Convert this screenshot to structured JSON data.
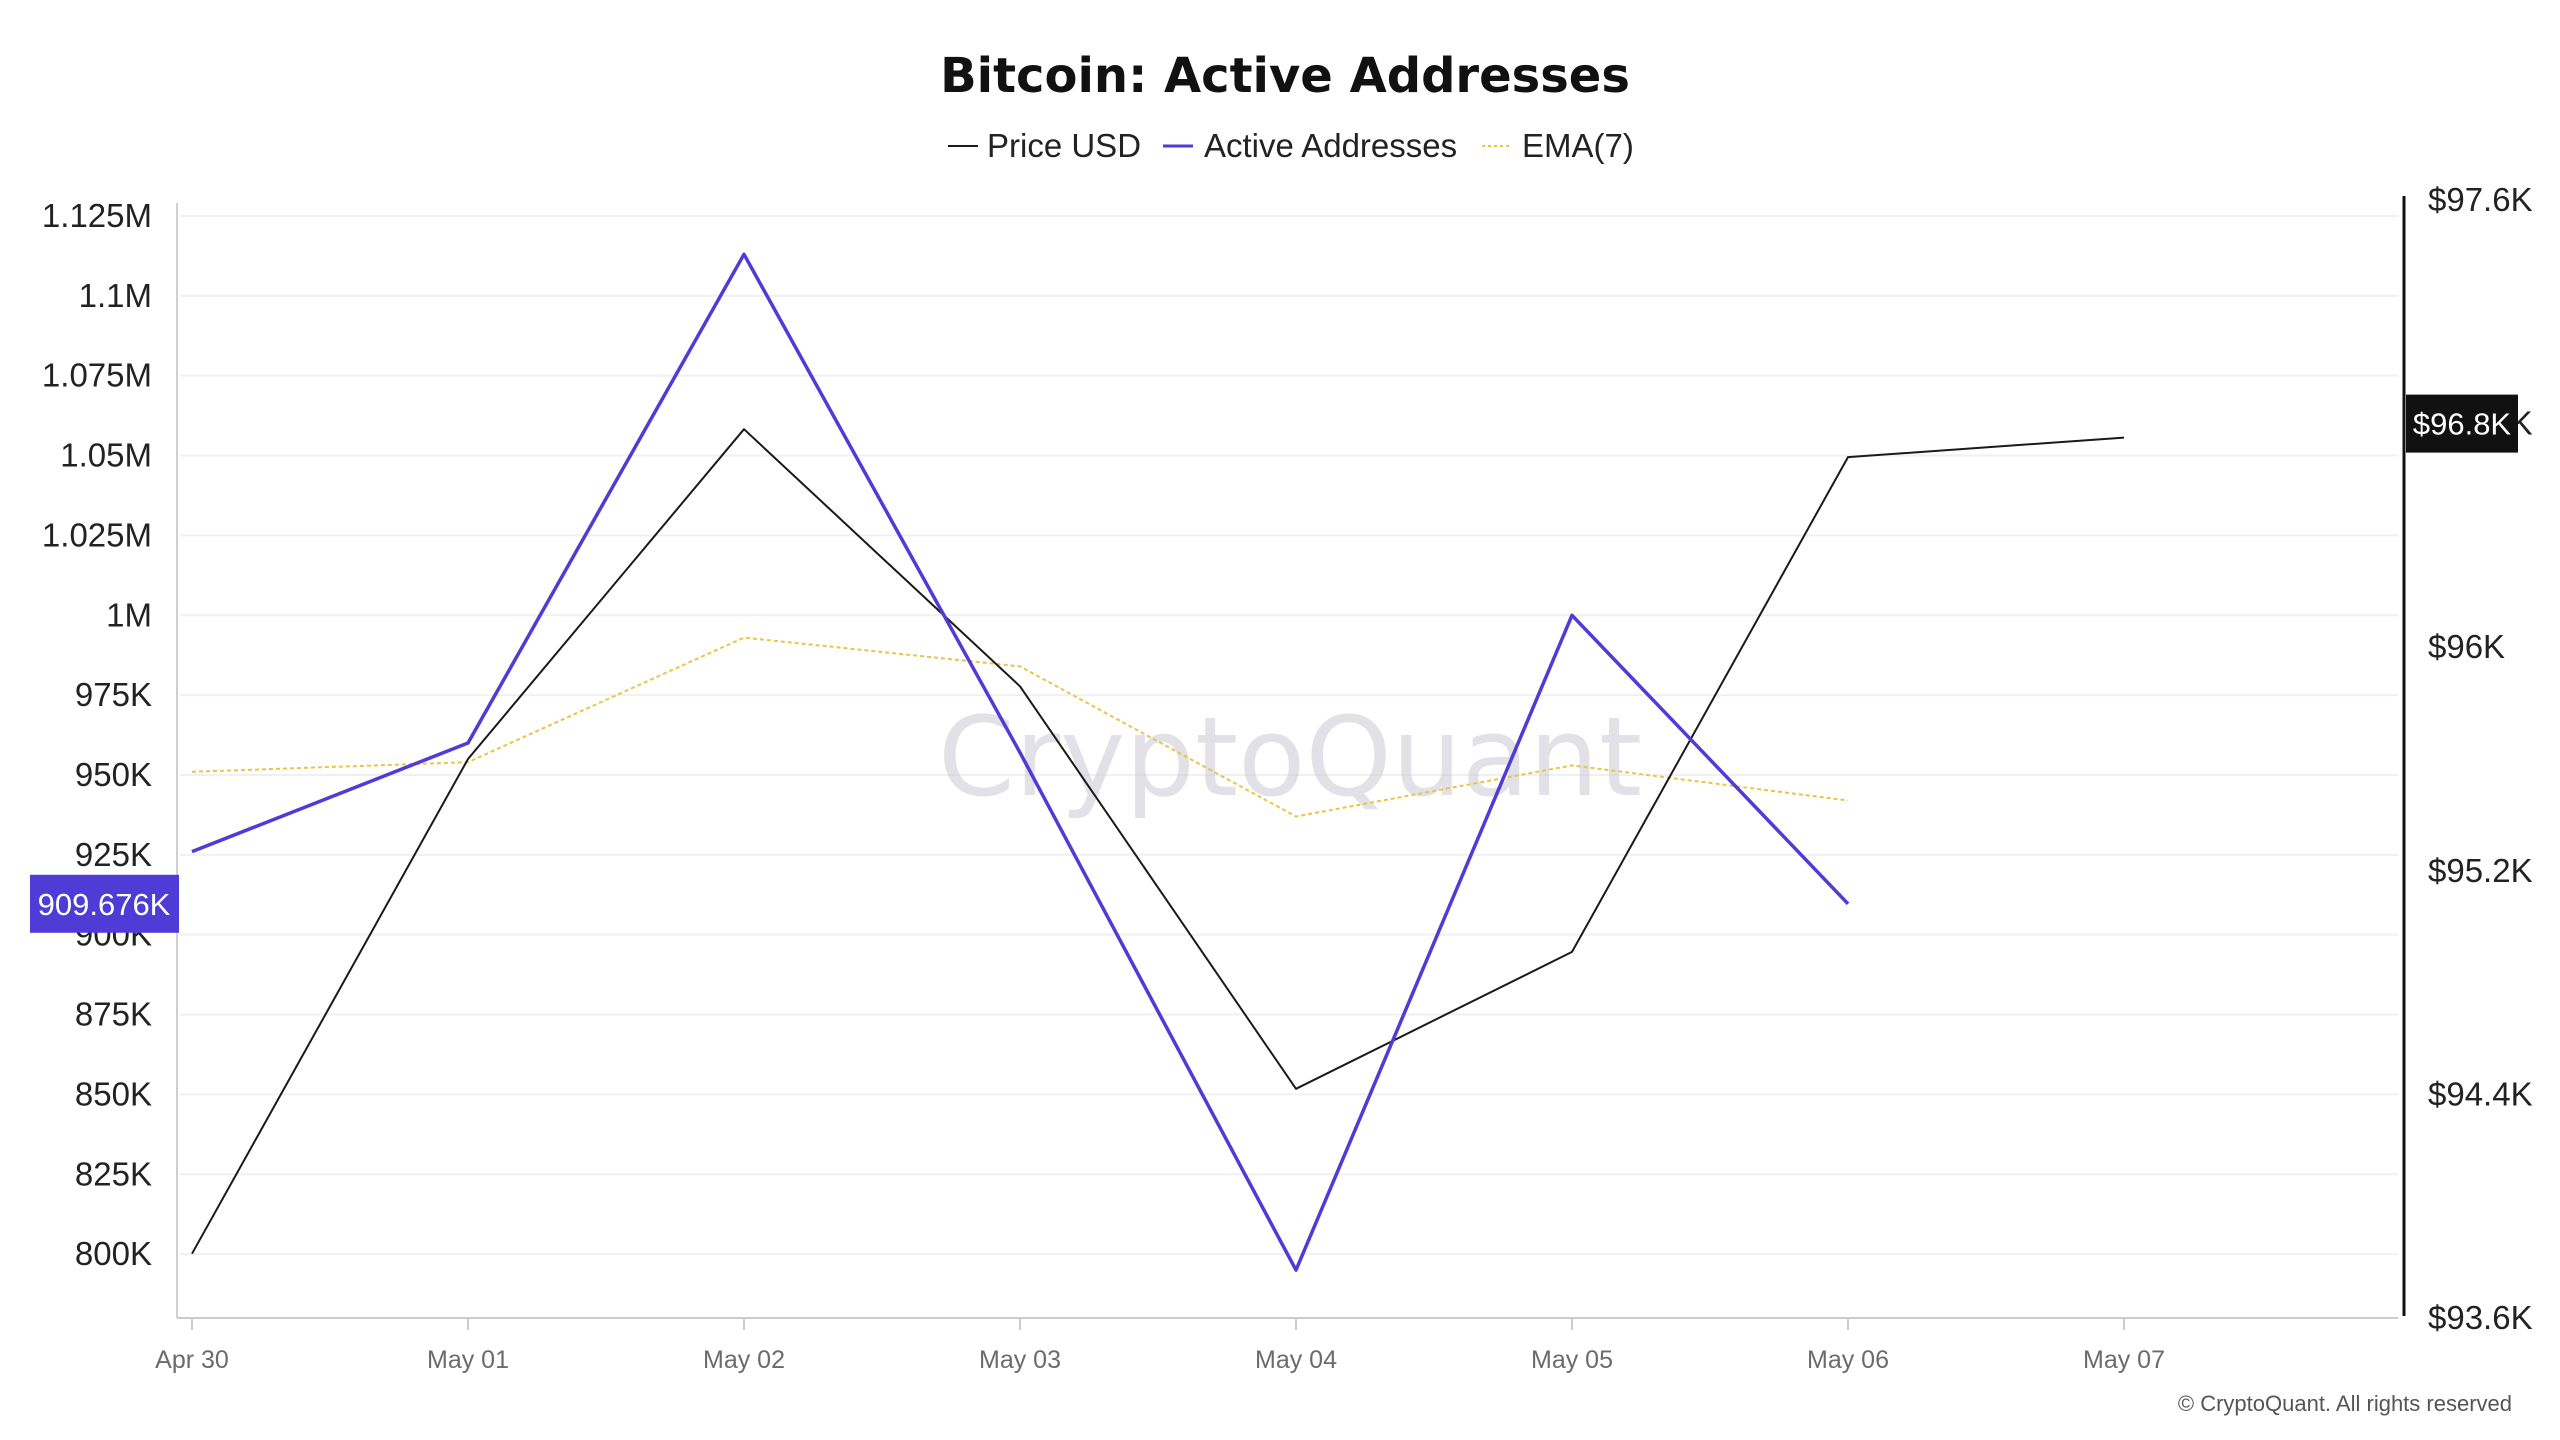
{
  "chart_data": {
    "type": "line",
    "title": "Bitcoin: Active Addresses",
    "categories": [
      "Apr 30",
      "May 01",
      "May 02",
      "May 03",
      "May 04",
      "May 05",
      "May 06",
      "May 07"
    ],
    "left_axis": {
      "ylim": [
        780000,
        1130000
      ],
      "ticks": [
        800000,
        825000,
        850000,
        875000,
        900000,
        925000,
        950000,
        975000,
        1000000,
        1025000,
        1050000,
        1075000,
        1100000,
        1125000
      ],
      "tick_labels": [
        "800K",
        "825K",
        "850K",
        "875K",
        "900K",
        "925K",
        "950K",
        "975K",
        "1M",
        "1.025M",
        "1.05M",
        "1.075M",
        "1.1M",
        "1.125M"
      ]
    },
    "right_axis": {
      "ylim": [
        93600,
        97600
      ],
      "ticks": [
        93600,
        94400,
        95200,
        96000,
        96800,
        97600
      ],
      "tick_labels": [
        "$93.6K",
        "$94.4K",
        "$95.2K",
        "$96K",
        "$96.8K",
        "$97.6K"
      ]
    },
    "series": [
      {
        "name": "Price USD",
        "axis": "right",
        "color": "#1a1a1a",
        "style": "solid",
        "values": [
          93830,
          95600,
          96780,
          95860,
          94420,
          94910,
          96680,
          96750
        ]
      },
      {
        "name": "Active Addresses",
        "axis": "left",
        "color": "#4f3bd6",
        "style": "solid",
        "values": [
          926000,
          960000,
          1113000,
          957000,
          795000,
          1000000,
          909676,
          null
        ]
      },
      {
        "name": "EMA(7)",
        "axis": "left",
        "color": "#e8c547",
        "style": "dotted",
        "values": [
          951000,
          954000,
          993000,
          984000,
          937000,
          953000,
          942000,
          null
        ]
      }
    ],
    "last_value_badges": [
      {
        "series": "Active Addresses",
        "label": "909.676K",
        "value": 909676,
        "axis": "left",
        "color": "#4f3bd6"
      },
      {
        "series": "Price USD",
        "label": "$96.8K",
        "value": 96800,
        "axis": "right",
        "color": "#111111"
      }
    ],
    "legend_position": "top-center",
    "grid": true
  },
  "watermark": "CryptoQuant",
  "copyright": "© CryptoQuant. All rights reserved"
}
